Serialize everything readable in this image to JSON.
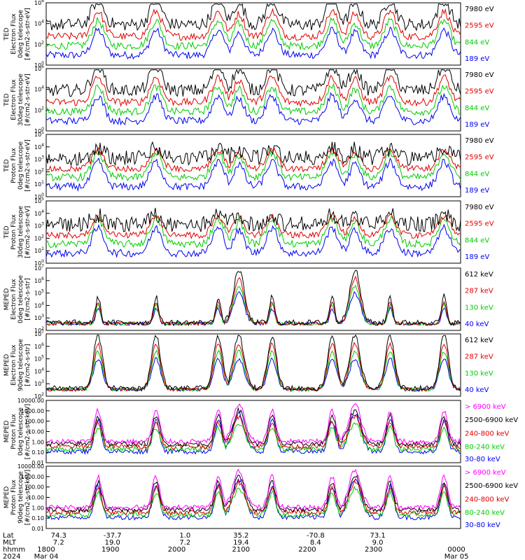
{
  "chart_data": [
    {
      "type": "line",
      "ylabel": [
        "TED",
        "Electron Flux",
        "0deg telescope",
        "[#/cm2-s-str-eV]"
      ],
      "log": true,
      "ylim_exp": [
        0,
        6
      ],
      "ytick_labels": [
        "10^0",
        "10^2",
        "10^4",
        "10^6"
      ],
      "series": [
        {
          "name": "7980 eV",
          "color": "#000000"
        },
        {
          "name": "2595 eV",
          "color": "#e00000"
        },
        {
          "name": "844 eV",
          "color": "#00cc00"
        },
        {
          "name": "189 eV",
          "color": "#0000ee"
        }
      ]
    },
    {
      "type": "line",
      "ylabel": [
        "TED",
        "Electron Flux",
        "30deg telescope",
        "[#/cm2-s-str-eV]"
      ],
      "log": true,
      "ylim_exp": [
        0,
        6
      ],
      "ytick_labels": [
        "10^0",
        "10^2",
        "10^4",
        "10^6"
      ],
      "series": [
        {
          "name": "7980 eV",
          "color": "#000000"
        },
        {
          "name": "2595 eV",
          "color": "#e00000"
        },
        {
          "name": "844 eV",
          "color": "#00cc00"
        },
        {
          "name": "189 eV",
          "color": "#0000ee"
        }
      ]
    },
    {
      "type": "line",
      "ylabel": [
        "TED",
        "Proton Flux",
        "0deg telescope",
        "[#/cm2-s-str-eV]"
      ],
      "log": true,
      "ylim_exp": [
        0,
        5
      ],
      "ytick_labels": [
        "10^0",
        "10^1",
        "10^2",
        "10^3",
        "10^4",
        "10^5"
      ],
      "series": [
        {
          "name": "7980 eV",
          "color": "#000000"
        },
        {
          "name": "2595 eV",
          "color": "#e00000"
        },
        {
          "name": "844 eV",
          "color": "#00cc00"
        },
        {
          "name": "189 eV",
          "color": "#0000ee"
        }
      ]
    },
    {
      "type": "line",
      "ylabel": [
        "TED",
        "Proton Flux",
        "30deg telescope",
        "[#/cm2-s-str-eV]"
      ],
      "log": true,
      "ylim_exp": [
        0,
        5
      ],
      "ytick_labels": [
        "10^0",
        "10^1",
        "10^2",
        "10^3",
        "10^4",
        "10^5"
      ],
      "series": [
        {
          "name": "7980 eV",
          "color": "#000000"
        },
        {
          "name": "2595 eV",
          "color": "#e00000"
        },
        {
          "name": "844 eV",
          "color": "#00cc00"
        },
        {
          "name": "189 eV",
          "color": "#0000ee"
        }
      ]
    },
    {
      "type": "line",
      "ylabel": [
        "MEPED",
        "Electron Flux",
        "0deg telescope",
        "[#/cm2-s-str]"
      ],
      "log": true,
      "ylim_exp": [
        2,
        7
      ],
      "ytick_labels": [
        "10^2",
        "10^3",
        "10^4",
        "10^5",
        "10^6",
        "10^7"
      ],
      "series": [
        {
          "name": "612 keV",
          "color": "#000000"
        },
        {
          "name": "287 keV",
          "color": "#e00000"
        },
        {
          "name": "130 keV",
          "color": "#00cc00"
        },
        {
          "name": "40 keV",
          "color": "#0000ee"
        }
      ]
    },
    {
      "type": "line",
      "ylabel": [
        "MEPED",
        "Electron Flux",
        "90deg telescope",
        "[#/cm2-s-str]"
      ],
      "log": true,
      "ylim_exp": [
        2,
        7
      ],
      "ytick_labels": [
        "10^2",
        "10^3",
        "10^4",
        "10^5",
        "10^6",
        "10^7"
      ],
      "series": [
        {
          "name": "612 keV",
          "color": "#000000"
        },
        {
          "name": "287 keV",
          "color": "#e00000"
        },
        {
          "name": "130 keV",
          "color": "#00cc00"
        },
        {
          "name": "40 keV",
          "color": "#0000ee"
        }
      ]
    },
    {
      "type": "line",
      "ylabel": [
        "MEPED",
        "Proton Flux",
        "0deg telescope",
        "[#/cm2-s-str-keV]"
      ],
      "log": true,
      "ylim": [
        0.01,
        10000
      ],
      "ytick_labels": [
        "10000.00",
        "1000.00",
        "100.00",
        "10.00",
        "1.00",
        "0.10",
        "0.01"
      ],
      "series": [
        {
          "name": "> 6900 keV",
          "color": "#ff00ff"
        },
        {
          "name": "2500-6900 keV",
          "color": "#000000"
        },
        {
          "name": "240-800 keV",
          "color": "#e00000"
        },
        {
          "name": "80-240 keV",
          "color": "#00cc00"
        },
        {
          "name": "30-80 keV",
          "color": "#0000ee"
        }
      ]
    },
    {
      "type": "line",
      "ylabel": [
        "MEPED",
        "Proton Flux",
        "90deg telescope",
        "[#/cm2-s-str-keV]"
      ],
      "log": true,
      "ylim": [
        0.01,
        10000
      ],
      "ytick_labels": [
        "10000.00",
        "1000.00",
        "100.00",
        "10.00",
        "1.00",
        "0.10",
        "0.01"
      ],
      "series": [
        {
          "name": "> 6900 keV",
          "color": "#ff00ff"
        },
        {
          "name": "2500-6900 keV",
          "color": "#000000"
        },
        {
          "name": "240-800 keV",
          "color": "#e00000"
        },
        {
          "name": "80-240 keV",
          "color": "#00cc00"
        },
        {
          "name": "30-80 keV",
          "color": "#0000ee"
        }
      ]
    }
  ],
  "x_axis": {
    "row_labels": [
      "Lat",
      "MLT",
      "hhmm",
      "2024"
    ],
    "lat": [
      "74.3",
      "-37.7",
      "1.0",
      "35.2",
      "-70.8",
      "73.1"
    ],
    "mlt": [
      "7.2",
      "19.0",
      "7.2",
      "19.4",
      "8.4",
      "9.0"
    ],
    "hhmm": [
      "1800",
      "1900",
      "2000",
      "2100",
      "2200",
      "2300",
      "0000"
    ],
    "dates": [
      "Mar 04",
      "Mar 05"
    ]
  }
}
